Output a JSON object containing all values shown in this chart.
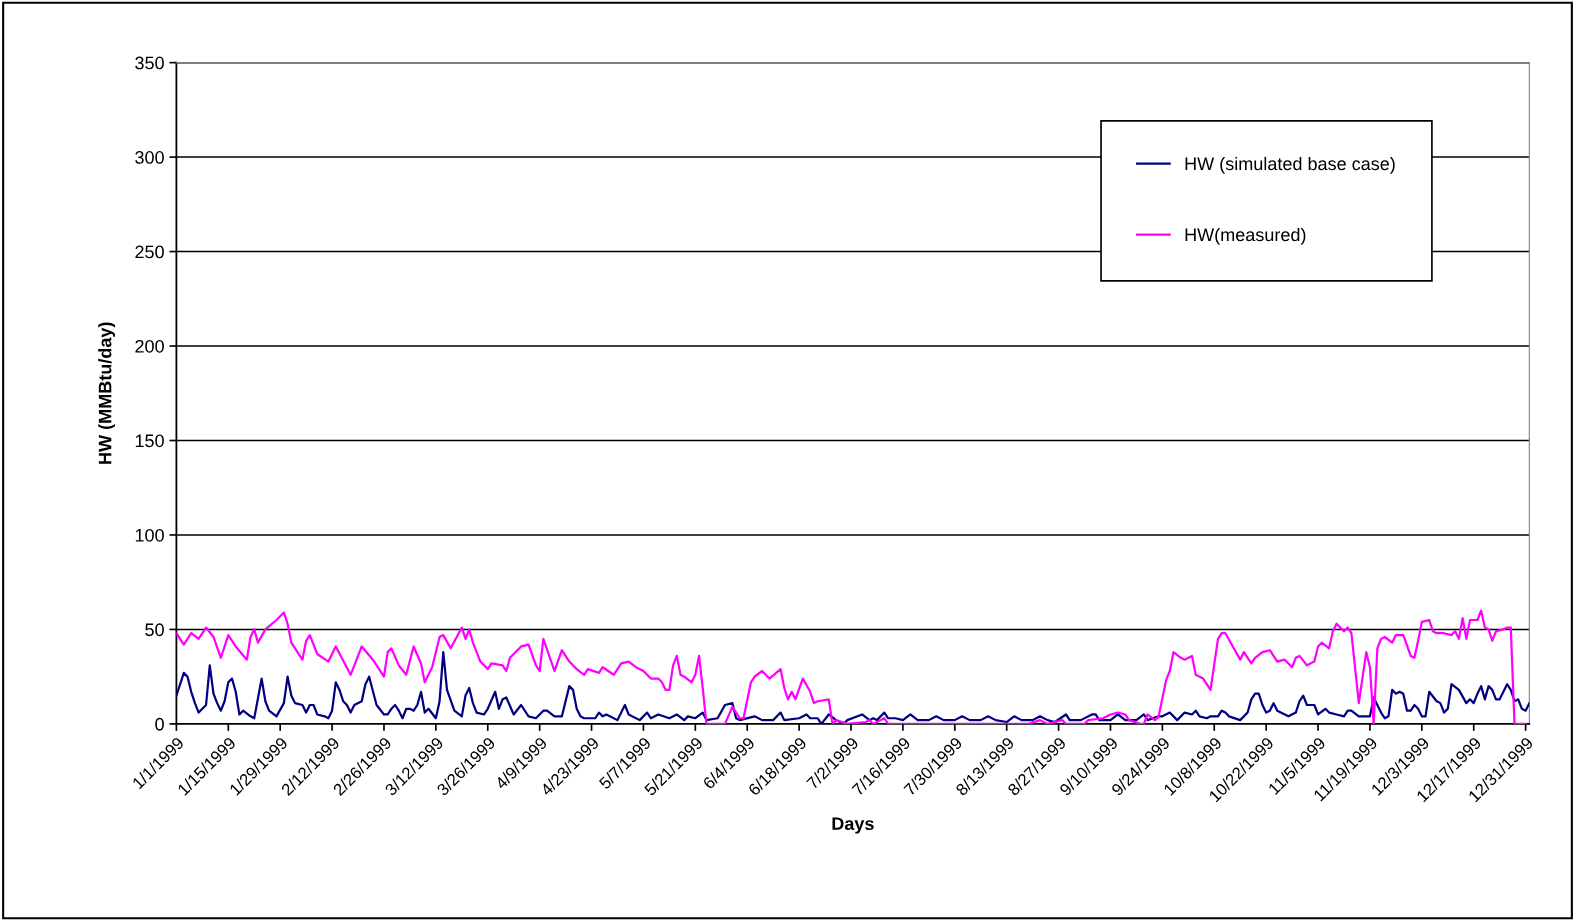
{
  "chart_data": {
    "type": "line",
    "xlabel": "Days",
    "ylabel": "HW (MMBtu/day)",
    "xlim": [
      "1999-01-01",
      "2000-01-01"
    ],
    "xticks": [
      {
        "value": "1999-01-01",
        "label": "1/1/1999"
      },
      {
        "value": "1999-01-15",
        "label": "1/15/1999"
      },
      {
        "value": "1999-01-29",
        "label": "1/29/1999"
      },
      {
        "value": "1999-02-12",
        "label": "2/12/1999"
      },
      {
        "value": "1999-02-26",
        "label": "2/26/1999"
      },
      {
        "value": "1999-03-12",
        "label": "3/12/1999"
      },
      {
        "value": "1999-03-26",
        "label": "3/26/1999"
      },
      {
        "value": "1999-04-09",
        "label": "4/9/1999"
      },
      {
        "value": "1999-04-23",
        "label": "4/23/1999"
      },
      {
        "value": "1999-05-07",
        "label": "5/7/1999"
      },
      {
        "value": "1999-05-21",
        "label": "5/21/1999"
      },
      {
        "value": "1999-06-04",
        "label": "6/4/1999"
      },
      {
        "value": "1999-06-18",
        "label": "6/18/1999"
      },
      {
        "value": "1999-07-02",
        "label": "7/2/1999"
      },
      {
        "value": "1999-07-16",
        "label": "7/16/1999"
      },
      {
        "value": "1999-07-30",
        "label": "7/30/1999"
      },
      {
        "value": "1999-08-13",
        "label": "8/13/1999"
      },
      {
        "value": "1999-08-27",
        "label": "8/27/1999"
      },
      {
        "value": "1999-09-10",
        "label": "9/10/1999"
      },
      {
        "value": "1999-09-24",
        "label": "9/24/1999"
      },
      {
        "value": "1999-10-08",
        "label": "10/8/1999"
      },
      {
        "value": "1999-10-22",
        "label": "10/22/1999"
      },
      {
        "value": "1999-11-05",
        "label": "11/5/1999"
      },
      {
        "value": "1999-11-19",
        "label": "11/19/1999"
      },
      {
        "value": "1999-12-03",
        "label": "12/3/1999"
      },
      {
        "value": "1999-12-17",
        "label": "12/17/1999"
      },
      {
        "value": "1999-12-31",
        "label": "12/31/1999"
      }
    ],
    "ylim": [
      0,
      350
    ],
    "yticks": [
      0,
      50,
      100,
      150,
      200,
      250,
      300,
      350
    ],
    "grid": "y",
    "legend": "top right",
    "marker": "none",
    "line_style": "solid",
    "series": [
      {
        "name": "HW (simulated base case)",
        "color": "#000080",
        "x": [
          "1999-01-01",
          "1999-01-03",
          "1999-01-04",
          "1999-01-05",
          "1999-01-06",
          "1999-01-07",
          "1999-01-09",
          "1999-01-10",
          "1999-01-11",
          "1999-01-12",
          "1999-01-13",
          "1999-01-14",
          "1999-01-15",
          "1999-01-16",
          "1999-01-17",
          "1999-01-18",
          "1999-01-19",
          "1999-01-21",
          "1999-01-22",
          "1999-01-24",
          "1999-01-25",
          "1999-01-26",
          "1999-01-28",
          "1999-01-30",
          "1999-01-31",
          "1999-02-01",
          "1999-02-02",
          "1999-02-04",
          "1999-02-05",
          "1999-02-06",
          "1999-02-07",
          "1999-02-08",
          "1999-02-10",
          "1999-02-11",
          "1999-02-12",
          "1999-02-13",
          "1999-02-14",
          "1999-02-15",
          "1999-02-16",
          "1999-02-17",
          "1999-02-18",
          "1999-02-20",
          "1999-02-21",
          "1999-02-22",
          "1999-02-24",
          "1999-02-26",
          "1999-02-27",
          "1999-02-28",
          "1999-03-01",
          "1999-03-02",
          "1999-03-03",
          "1999-03-04",
          "1999-03-05",
          "1999-03-06",
          "1999-03-07",
          "1999-03-08",
          "1999-03-09",
          "1999-03-10",
          "1999-03-12",
          "1999-03-13",
          "1999-03-14",
          "1999-03-15",
          "1999-03-17",
          "1999-03-19",
          "1999-03-20",
          "1999-03-21",
          "1999-03-22",
          "1999-03-23",
          "1999-03-25",
          "1999-03-26",
          "1999-03-28",
          "1999-03-29",
          "1999-03-30",
          "1999-03-31",
          "1999-04-02",
          "1999-04-04",
          "1999-04-06",
          "1999-04-08",
          "1999-04-10",
          "1999-04-11",
          "1999-04-13",
          "1999-04-15",
          "1999-04-17",
          "1999-04-18",
          "1999-04-19",
          "1999-04-20",
          "1999-04-21",
          "1999-04-24",
          "1999-04-25",
          "1999-04-26",
          "1999-04-27",
          "1999-04-30",
          "1999-05-02",
          "1999-05-03",
          "1999-05-06",
          "1999-05-08",
          "1999-05-09",
          "1999-05-11",
          "1999-05-14",
          "1999-05-16",
          "1999-05-18",
          "1999-05-19",
          "1999-05-21",
          "1999-05-23",
          "1999-05-24",
          "1999-05-27",
          "1999-05-29",
          "1999-05-31",
          "1999-06-01",
          "1999-06-02",
          "1999-06-06",
          "1999-06-08",
          "1999-06-11",
          "1999-06-13",
          "1999-06-14",
          "1999-06-18",
          "1999-06-20",
          "1999-06-21",
          "1999-06-23",
          "1999-06-24",
          "1999-06-26",
          "1999-06-28",
          "1999-06-30",
          "1999-07-01",
          "1999-07-05",
          "1999-07-07",
          "1999-07-08",
          "1999-07-09",
          "1999-07-11",
          "1999-07-12",
          "1999-07-14",
          "1999-07-16",
          "1999-07-18",
          "1999-07-20",
          "1999-07-23",
          "1999-07-25",
          "1999-07-27",
          "1999-07-30",
          "1999-08-01",
          "1999-08-03",
          "1999-08-06",
          "1999-08-08",
          "1999-08-10",
          "1999-08-13",
          "1999-08-15",
          "1999-08-17",
          "1999-08-20",
          "1999-08-22",
          "1999-08-24",
          "1999-08-26",
          "1999-08-29",
          "1999-08-30",
          "1999-09-02",
          "1999-09-05",
          "1999-09-06",
          "1999-09-07",
          "1999-09-10",
          "1999-09-12",
          "1999-09-14",
          "1999-09-17",
          "1999-09-19",
          "1999-09-20",
          "1999-09-23",
          "1999-09-24",
          "1999-09-26",
          "1999-09-28",
          "1999-09-30",
          "1999-10-02",
          "1999-10-03",
          "1999-10-04",
          "1999-10-06",
          "1999-10-07",
          "1999-10-09",
          "1999-10-10",
          "1999-10-11",
          "1999-10-12",
          "1999-10-15",
          "1999-10-17",
          "1999-10-18",
          "1999-10-19",
          "1999-10-20",
          "1999-10-21",
          "1999-10-22",
          "1999-10-23",
          "1999-10-24",
          "1999-10-25",
          "1999-10-28",
          "1999-10-30",
          "1999-10-31",
          "1999-11-01",
          "1999-11-02",
          "1999-11-04",
          "1999-11-05",
          "1999-11-07",
          "1999-11-08",
          "1999-11-10",
          "1999-11-12",
          "1999-11-13",
          "1999-11-14",
          "1999-11-16",
          "1999-11-19",
          "1999-11-20",
          "1999-11-22",
          "1999-11-23",
          "1999-11-24",
          "1999-11-25",
          "1999-11-26",
          "1999-11-27",
          "1999-11-28",
          "1999-11-29",
          "1999-11-30",
          "1999-12-01",
          "1999-12-02",
          "1999-12-03",
          "1999-12-04",
          "1999-12-05",
          "1999-12-07",
          "1999-12-08",
          "1999-12-09",
          "1999-12-10",
          "1999-12-11",
          "1999-12-13",
          "1999-12-15",
          "1999-12-16",
          "1999-12-17",
          "1999-12-18",
          "1999-12-19",
          "1999-12-20",
          "1999-12-21",
          "1999-12-22",
          "1999-12-23",
          "1999-12-24",
          "1999-12-26",
          "1999-12-27",
          "1999-12-28",
          "1999-12-29",
          "1999-12-30",
          "1999-12-31",
          "2000-01-01"
        ],
        "values": [
          15,
          27,
          25,
          17,
          11,
          6,
          10,
          31,
          16,
          11,
          7,
          12,
          22,
          24,
          17,
          5,
          7,
          4,
          3,
          24,
          12,
          7,
          4,
          11,
          25,
          15,
          11,
          10,
          6,
          10,
          10,
          5,
          4,
          3,
          7,
          22,
          18,
          12,
          10,
          6,
          10,
          12,
          21,
          25,
          10,
          5,
          5,
          8,
          10,
          7,
          3,
          8,
          8,
          7,
          10,
          17,
          6,
          8,
          3,
          12,
          38,
          18,
          7,
          4,
          15,
          19,
          11,
          6,
          5,
          8,
          17,
          8,
          13,
          14,
          5,
          10,
          4,
          3,
          7,
          7,
          4,
          4,
          20,
          18,
          8,
          4,
          3,
          3,
          6,
          4,
          5,
          2,
          10,
          5,
          2,
          6,
          3,
          5,
          3,
          5,
          2,
          4,
          3,
          6,
          2,
          3,
          10,
          11,
          3,
          2,
          4,
          2,
          2,
          6,
          2,
          3,
          5,
          3,
          3,
          0,
          5,
          2,
          0,
          2,
          5,
          2,
          3,
          2,
          6,
          3,
          3,
          2,
          5,
          2,
          2,
          4,
          2,
          2,
          4,
          2,
          2,
          4,
          2,
          1,
          4,
          2,
          2,
          4,
          2,
          1,
          5,
          2,
          2,
          5,
          5,
          2,
          2,
          5,
          2,
          2,
          5,
          2,
          4,
          4,
          6,
          2,
          6,
          5,
          7,
          4,
          3,
          4,
          4,
          7,
          6,
          4,
          2,
          6,
          13,
          16,
          16,
          10,
          6,
          7,
          11,
          7,
          4,
          6,
          12,
          15,
          10,
          10,
          5,
          8,
          6,
          5,
          4,
          7,
          7,
          4,
          4,
          14,
          6,
          3,
          4,
          18,
          16,
          17,
          16,
          7,
          7,
          10,
          8,
          4,
          4,
          17,
          12,
          11,
          6,
          8,
          21,
          18,
          11,
          13,
          11,
          16,
          20,
          13,
          20,
          18,
          13,
          13,
          21,
          18,
          12,
          13,
          8,
          7,
          11
        ]
      },
      {
        "name": "HW(measured)",
        "color": "#ff00ff",
        "x": [
          "1999-01-01",
          "1999-01-03",
          "1999-01-05",
          "1999-01-07",
          "1999-01-09",
          "1999-01-11",
          "1999-01-13",
          "1999-01-15",
          "1999-01-17",
          "1999-01-20",
          "1999-01-21",
          "1999-01-22",
          "1999-01-23",
          "1999-01-25",
          "1999-01-28",
          "1999-01-30",
          "1999-01-31",
          "1999-02-01",
          "1999-02-04",
          "1999-02-05",
          "1999-02-06",
          "1999-02-08",
          "1999-02-11",
          "1999-02-13",
          "1999-02-17",
          "1999-02-20",
          "1999-02-23",
          "1999-02-26",
          "1999-02-27",
          "1999-02-28",
          "1999-03-02",
          "1999-03-04",
          "1999-03-06",
          "1999-03-08",
          "1999-03-09",
          "1999-03-11",
          "1999-03-13",
          "1999-03-14",
          "1999-03-16",
          "1999-03-19",
          "1999-03-20",
          "1999-03-21",
          "1999-03-22",
          "1999-03-24",
          "1999-03-26",
          "1999-03-27",
          "1999-03-30",
          "1999-03-31",
          "1999-04-01",
          "1999-04-04",
          "1999-04-06",
          "1999-04-08",
          "1999-04-09",
          "1999-04-10",
          "1999-04-13",
          "1999-04-15",
          "1999-04-17",
          "1999-04-19",
          "1999-04-21",
          "1999-04-22",
          "1999-04-25",
          "1999-04-26",
          "1999-04-29",
          "1999-04-30",
          "1999-05-01",
          "1999-05-03",
          "1999-05-05",
          "1999-05-07",
          "1999-05-09",
          "1999-05-11",
          "1999-05-12",
          "1999-05-13",
          "1999-05-14",
          "1999-05-15",
          "1999-05-16",
          "1999-05-17",
          "1999-05-18",
          "1999-05-20",
          "1999-05-21",
          "1999-05-22",
          "1999-05-23",
          "1999-05-24",
          "1999-05-29",
          "1999-05-31",
          "1999-06-02",
          "1999-06-03",
          "1999-06-05",
          "1999-06-06",
          "1999-06-08",
          "1999-06-10",
          "1999-06-13",
          "1999-06-14",
          "1999-06-15",
          "1999-06-16",
          "1999-06-17",
          "1999-06-19",
          "1999-06-21",
          "1999-06-22",
          "1999-06-23",
          "1999-06-26",
          "1999-06-27",
          "1999-06-28",
          "1999-07-01",
          "1999-07-06",
          "1999-07-07",
          "1999-07-08",
          "1999-07-11",
          "1999-07-12",
          "1999-08-19",
          "1999-08-22",
          "1999-08-24",
          "1999-08-28",
          "1999-08-29",
          "1999-09-03",
          "1999-09-04",
          "1999-09-08",
          "1999-09-10",
          "1999-09-12",
          "1999-09-14",
          "1999-09-15",
          "1999-09-18",
          "1999-09-19",
          "1999-09-20",
          "1999-09-22",
          "1999-09-23",
          "1999-09-25",
          "1999-09-26",
          "1999-09-27",
          "1999-09-29",
          "1999-09-30",
          "1999-10-02",
          "1999-10-03",
          "1999-10-05",
          "1999-10-07",
          "1999-10-09",
          "1999-10-10",
          "1999-10-11",
          "1999-10-13",
          "1999-10-15",
          "1999-10-16",
          "1999-10-18",
          "1999-10-19",
          "1999-10-21",
          "1999-10-23",
          "1999-10-25",
          "1999-10-27",
          "1999-10-29",
          "1999-10-30",
          "1999-10-31",
          "1999-11-02",
          "1999-11-04",
          "1999-11-05",
          "1999-11-06",
          "1999-11-08",
          "1999-11-09",
          "1999-11-10",
          "1999-11-12",
          "1999-11-13",
          "1999-11-14",
          "1999-11-16",
          "1999-11-18",
          "1999-11-19",
          "1999-11-20",
          "1999-11-21",
          "1999-11-22",
          "1999-11-23",
          "1999-11-25",
          "1999-11-26",
          "1999-11-28",
          "1999-11-30",
          "1999-12-01",
          "1999-12-02",
          "1999-12-03",
          "1999-12-05",
          "1999-12-06",
          "1999-12-07",
          "1999-12-09",
          "1999-12-11",
          "1999-12-12",
          "1999-12-13",
          "1999-12-14",
          "1999-12-15",
          "1999-12-16",
          "1999-12-18",
          "1999-12-19",
          "1999-12-20",
          "1999-12-21",
          "1999-12-22",
          "1999-12-23",
          "1999-12-25",
          "1999-12-26",
          "1999-12-27",
          "1999-12-28",
          "1999-12-31"
        ],
        "values": [
          48,
          42,
          48,
          45,
          51,
          46,
          35,
          47,
          41,
          34,
          46,
          50,
          43,
          50,
          55,
          59,
          53,
          43,
          34,
          44,
          47,
          37,
          33,
          41,
          26,
          41,
          34,
          25,
          38,
          40,
          31,
          26,
          41,
          32,
          22,
          30,
          46,
          47,
          40,
          51,
          45,
          50,
          43,
          33,
          29,
          32,
          31,
          28,
          35,
          41,
          42,
          31,
          28,
          45,
          28,
          39,
          33,
          29,
          26,
          29,
          27,
          30,
          26,
          29,
          32,
          33,
          30,
          28,
          24,
          24,
          22,
          18,
          18,
          31,
          36,
          26,
          25,
          22,
          26,
          36,
          19,
          0,
          0,
          9,
          3,
          3,
          22,
          25,
          28,
          24,
          29,
          19,
          13,
          17,
          13,
          24,
          17,
          11,
          12,
          13,
          0,
          2,
          0,
          1,
          2,
          0,
          3,
          0,
          0,
          2,
          0,
          2,
          0,
          0,
          2,
          3,
          5,
          6,
          5,
          2,
          0,
          0,
          5,
          2,
          4,
          23,
          28,
          38,
          35,
          34,
          36,
          26,
          24,
          18,
          45,
          48,
          48,
          41,
          34,
          38,
          32,
          35,
          38,
          39,
          33,
          34,
          30,
          35,
          36,
          31,
          33,
          41,
          43,
          40,
          49,
          53,
          49,
          51,
          48,
          11,
          38,
          30,
          0,
          40,
          45,
          46,
          43,
          47,
          47,
          36,
          35,
          44,
          54,
          55,
          49,
          48,
          48,
          47,
          49,
          45,
          56,
          45,
          55,
          55,
          60,
          51,
          50,
          44,
          49,
          50,
          51,
          51,
          0,
          0
        ]
      }
    ]
  }
}
